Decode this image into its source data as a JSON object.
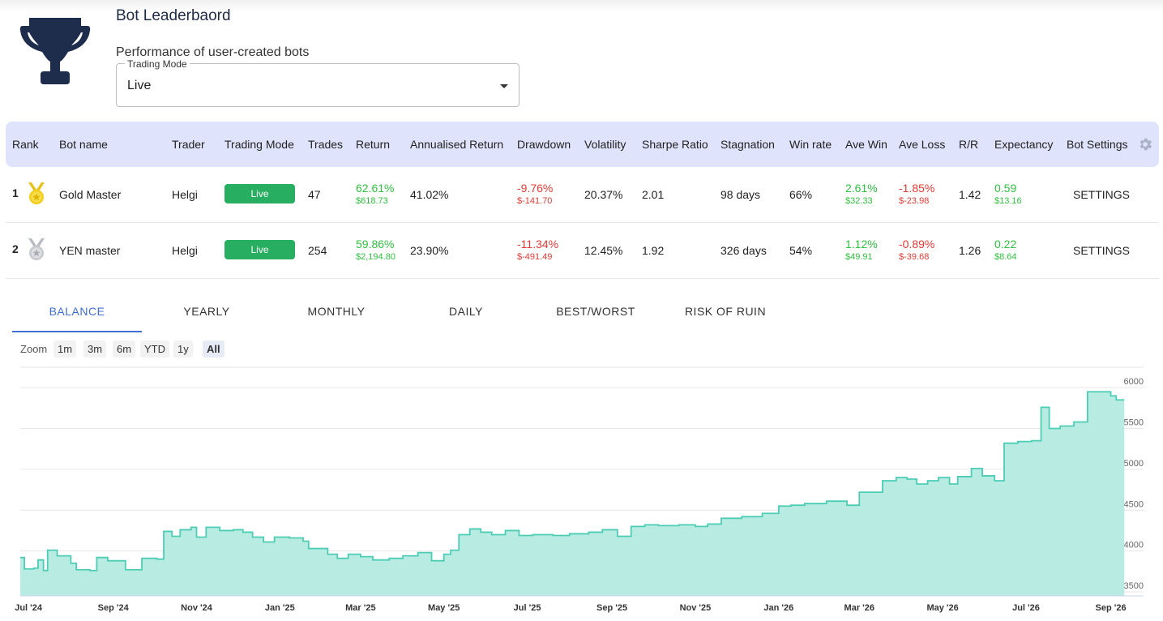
{
  "header": {
    "title": "Bot Leaderbaord",
    "subtitle": "Performance of user-created bots",
    "trading_mode_label": "Trading Mode",
    "trading_mode_value": "Live"
  },
  "table": {
    "columns": [
      "Rank",
      "Bot name",
      "Trader",
      "Trading Mode",
      "Trades",
      "Return",
      "Annualised Return",
      "Drawdown",
      "Volatility",
      "Sharpe Ratio",
      "Stagnation",
      "Win rate",
      "Ave Win",
      "Ave Loss",
      "R/R",
      "Expectancy",
      "Bot Settings"
    ],
    "rows": [
      {
        "rank": "1",
        "medal": "gold-medal-icon",
        "bot_name": "Gold Master",
        "trader": "Helgi",
        "mode": "Live",
        "trades": "47",
        "return_pct": "62.61%",
        "return_usd": "$618.73",
        "annualised": "41.02%",
        "drawdown_pct": "-9.76%",
        "drawdown_usd": "$-141.70",
        "volatility": "20.37%",
        "sharpe": "2.01",
        "stagnation": "98 days",
        "win_rate": "66%",
        "ave_win_pct": "2.61%",
        "ave_win_usd": "$32.33",
        "ave_loss_pct": "-1.85%",
        "ave_loss_usd": "$-23.98",
        "rr": "1.42",
        "expectancy": "0.59",
        "expectancy_usd": "$13.16",
        "settings": "SETTINGS"
      },
      {
        "rank": "2",
        "medal": "silver-medal-icon",
        "bot_name": "YEN master",
        "trader": "Helgi",
        "mode": "Live",
        "trades": "254",
        "return_pct": "59.86%",
        "return_usd": "$2,194.80",
        "annualised": "23.90%",
        "drawdown_pct": "-11.34%",
        "drawdown_usd": "$-491.49",
        "volatility": "12.45%",
        "sharpe": "1.92",
        "stagnation": "326 days",
        "win_rate": "54%",
        "ave_win_pct": "1.12%",
        "ave_win_usd": "$49.91",
        "ave_loss_pct": "-0.89%",
        "ave_loss_usd": "$-39.68",
        "rr": "1.26",
        "expectancy": "0.22",
        "expectancy_usd": "$8.64",
        "settings": "SETTINGS"
      }
    ]
  },
  "tabs": [
    "BALANCE",
    "YEARLY",
    "MONTHLY",
    "DAILY",
    "BEST/WORST",
    "RISK OF RUIN"
  ],
  "active_tab": "BALANCE",
  "zoom": {
    "label": "Zoom",
    "options": [
      "1m",
      "3m",
      "6m",
      "YTD",
      "1y",
      "All"
    ],
    "selected": "All"
  },
  "colors": {
    "accent": "#3f6fd4",
    "positive": "#2fc141",
    "negative": "#e53935",
    "live_badge": "#27ae60",
    "area_fill": "#b8ece2",
    "area_line": "#4ccdb4",
    "header_bg": "#dfe3fb",
    "trophy": "#1f2d4d"
  },
  "icons": [
    "trophy-icon",
    "gold-medal-icon",
    "silver-medal-icon",
    "gear-icon",
    "chevron-down-icon"
  ],
  "chart_data": {
    "type": "area",
    "y_ticks": [
      3500,
      4000,
      4500,
      5000,
      5500,
      6000
    ],
    "ylim": [
      3450,
      6250
    ],
    "x_ticks": [
      "Jul '24",
      "Sep '24",
      "Nov '24",
      "Jan '25",
      "Mar '25",
      "May '25",
      "Jul '25",
      "Sep '25",
      "Nov '25",
      "Jan '26",
      "Mar '26",
      "May '26",
      "Jul '26",
      "Sep '26"
    ],
    "xlim": [
      "2024-06-25",
      "2026-09-25"
    ],
    "series": [
      {
        "points": [
          [
            "2024-06-25",
            3920
          ],
          [
            "2024-06-28",
            3780
          ],
          [
            "2024-07-05",
            3790
          ],
          [
            "2024-07-08",
            3890
          ],
          [
            "2024-07-12",
            3760
          ],
          [
            "2024-07-15",
            4010
          ],
          [
            "2024-07-22",
            3940
          ],
          [
            "2024-08-01",
            3850
          ],
          [
            "2024-08-05",
            3770
          ],
          [
            "2024-08-15",
            3760
          ],
          [
            "2024-08-20",
            3920
          ],
          [
            "2024-08-28",
            3880
          ],
          [
            "2024-09-10",
            3770
          ],
          [
            "2024-09-22",
            3910
          ],
          [
            "2024-10-03",
            3900
          ],
          [
            "2024-10-08",
            4240
          ],
          [
            "2024-10-14",
            4180
          ],
          [
            "2024-10-20",
            4260
          ],
          [
            "2024-10-28",
            4290
          ],
          [
            "2024-11-01",
            4170
          ],
          [
            "2024-11-08",
            4290
          ],
          [
            "2024-11-18",
            4250
          ],
          [
            "2024-11-28",
            4260
          ],
          [
            "2024-12-05",
            4230
          ],
          [
            "2024-12-12",
            4170
          ],
          [
            "2024-12-20",
            4110
          ],
          [
            "2024-12-28",
            4170
          ],
          [
            "2025-01-08",
            4160
          ],
          [
            "2025-01-18",
            4120
          ],
          [
            "2025-01-22",
            4030
          ],
          [
            "2025-02-05",
            3960
          ],
          [
            "2025-02-12",
            3910
          ],
          [
            "2025-02-20",
            3960
          ],
          [
            "2025-03-01",
            3930
          ],
          [
            "2025-03-10",
            3890
          ],
          [
            "2025-03-22",
            3910
          ],
          [
            "2025-04-01",
            3940
          ],
          [
            "2025-04-12",
            3980
          ],
          [
            "2025-04-22",
            3880
          ],
          [
            "2025-05-01",
            3960
          ],
          [
            "2025-05-06",
            4010
          ],
          [
            "2025-05-12",
            4200
          ],
          [
            "2025-05-20",
            4270
          ],
          [
            "2025-05-28",
            4230
          ],
          [
            "2025-06-05",
            4200
          ],
          [
            "2025-06-15",
            4250
          ],
          [
            "2025-06-25",
            4190
          ],
          [
            "2025-07-05",
            4200
          ],
          [
            "2025-07-20",
            4190
          ],
          [
            "2025-08-01",
            4210
          ],
          [
            "2025-08-15",
            4230
          ],
          [
            "2025-08-25",
            4260
          ],
          [
            "2025-09-05",
            4180
          ],
          [
            "2025-09-15",
            4300
          ],
          [
            "2025-09-25",
            4320
          ],
          [
            "2025-10-05",
            4310
          ],
          [
            "2025-10-20",
            4320
          ],
          [
            "2025-11-01",
            4300
          ],
          [
            "2025-11-10",
            4330
          ],
          [
            "2025-11-20",
            4400
          ],
          [
            "2025-12-05",
            4420
          ],
          [
            "2025-12-20",
            4460
          ],
          [
            "2026-01-01",
            4550
          ],
          [
            "2026-01-10",
            4560
          ],
          [
            "2026-01-20",
            4580
          ],
          [
            "2026-02-05",
            4610
          ],
          [
            "2026-02-20",
            4560
          ],
          [
            "2026-03-01",
            4720
          ],
          [
            "2026-03-10",
            4720
          ],
          [
            "2026-03-18",
            4860
          ],
          [
            "2026-03-28",
            4900
          ],
          [
            "2026-04-05",
            4880
          ],
          [
            "2026-04-12",
            4820
          ],
          [
            "2026-04-20",
            4860
          ],
          [
            "2026-04-28",
            4900
          ],
          [
            "2026-05-06",
            4820
          ],
          [
            "2026-05-12",
            4910
          ],
          [
            "2026-05-22",
            5010
          ],
          [
            "2026-05-30",
            4920
          ],
          [
            "2026-06-08",
            4860
          ],
          [
            "2026-06-15",
            5320
          ],
          [
            "2026-06-25",
            5340
          ],
          [
            "2026-07-05",
            5350
          ],
          [
            "2026-07-12",
            5760
          ],
          [
            "2026-07-18",
            5500
          ],
          [
            "2026-07-26",
            5530
          ],
          [
            "2026-08-05",
            5580
          ],
          [
            "2026-08-15",
            5950
          ],
          [
            "2026-08-22",
            5950
          ],
          [
            "2026-09-01",
            5900
          ],
          [
            "2026-09-05",
            5850
          ]
        ]
      }
    ]
  }
}
